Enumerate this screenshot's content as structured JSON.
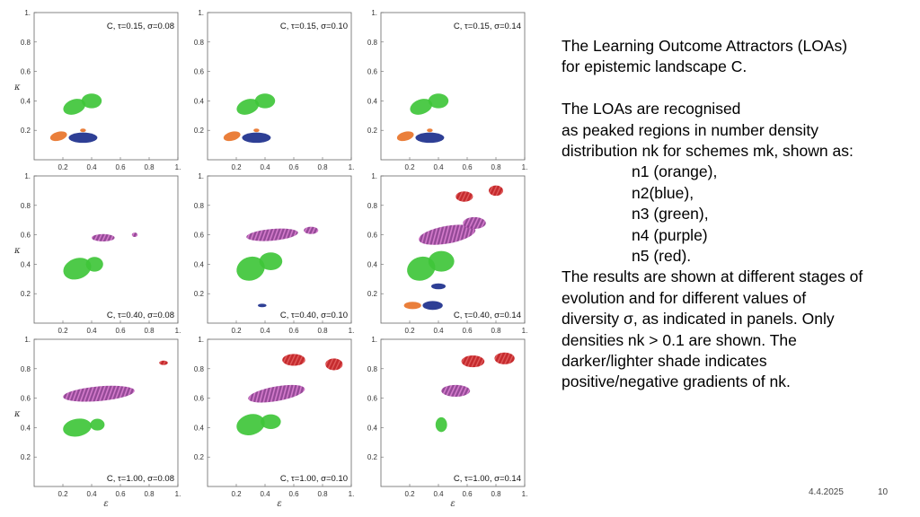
{
  "figure": {
    "tick_labels_y": [
      "0.2",
      "0.4",
      "0.6",
      "0.8",
      "1."
    ],
    "tick_labels_x": [
      "0.2",
      "0.4",
      "0.6",
      "0.8",
      "1."
    ],
    "y_axis_label": "κ",
    "x_axis_label": "ε",
    "panels": [
      {
        "label": "C, τ=0.15, σ=0.08"
      },
      {
        "label": "C, τ=0.15, σ=0.10"
      },
      {
        "label": "C, τ=0.15, σ=0.14"
      },
      {
        "label": "C, τ=0.40, σ=0.08"
      },
      {
        "label": "C, τ=0.40, σ=0.10"
      },
      {
        "label": "C, τ=0.40, σ=0.14"
      },
      {
        "label": "C, τ=1.00, σ=0.08"
      },
      {
        "label": "C, τ=1.00, σ=0.10"
      },
      {
        "label": "C, τ=1.00, σ=0.14"
      }
    ],
    "colors": {
      "orange": "#e8742a",
      "blue": "#1c2f8c",
      "green": "#3fc63a",
      "purple": "#8b3a8e",
      "red": "#c0191c"
    }
  },
  "text": {
    "l1": "The Learning Outcome Attractors (LOAs)",
    "l2": "for epistemic landscape C.",
    "l3": "The LOAs are recognised",
    "l4": "as peaked regions in number density",
    "l5": "distribution nk for schemes mk, shown as:",
    "i1": "n1 (orange),",
    "i2": "n2(blue),",
    "i3": "n3 (green),",
    "i4": "n4 (purple)",
    "i5": "n5 (red).",
    "l6": "The results are shown at different stages of",
    "l7": "evolution and for different values of",
    "l8": "diversity σ, as indicated in panels. Only",
    "l9": "densities nk > 0.1 are shown. The",
    "l10": "darker/lighter shade indicates",
    "l11": "positive/negative gradients of nk."
  },
  "footer": {
    "date": "4.4.2025",
    "page": "10"
  }
}
